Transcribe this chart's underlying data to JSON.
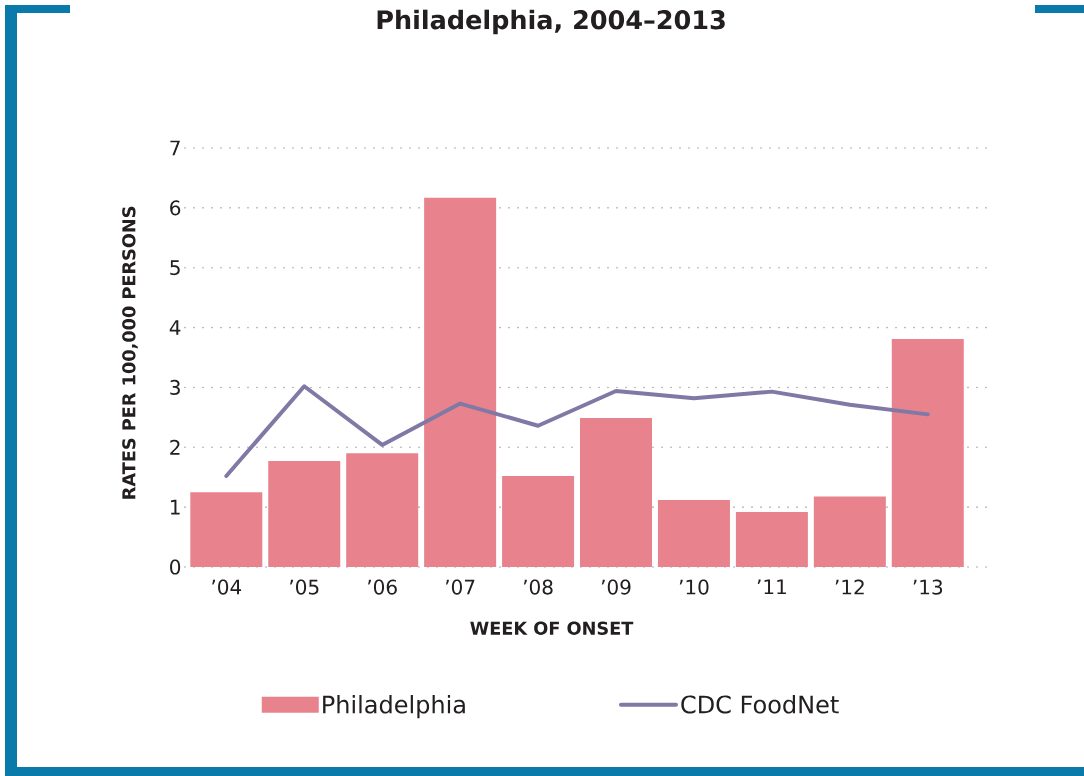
{
  "chart_data": {
    "type": "bar",
    "title": "Philadelphia, 2004–2013",
    "xlabel": "WEEK OF ONSET",
    "ylabel": "RATES PER 100,000 PERSONS",
    "categories": [
      "’04",
      "’05",
      "’06",
      "’07",
      "’08",
      "’09",
      "’10",
      "’11",
      "’12",
      "’13"
    ],
    "series": [
      {
        "name": "Philadelphia",
        "color": "#e8838d",
        "values": [
          1.25,
          1.77,
          1.9,
          6.17,
          1.52,
          2.49,
          1.12,
          0.92,
          1.18,
          3.81
        ]
      },
      {
        "name": "CDC FoodNet",
        "type": "line",
        "color": "#8079a6",
        "values": [
          1.52,
          3.02,
          2.04,
          2.73,
          2.36,
          2.94,
          2.82,
          2.93,
          2.71,
          2.55
        ]
      }
    ],
    "ylim": [
      0,
      7
    ],
    "yticks": [
      0,
      1,
      2,
      3,
      4,
      5,
      6,
      7
    ],
    "grid": "y",
    "legend": "bottom"
  }
}
